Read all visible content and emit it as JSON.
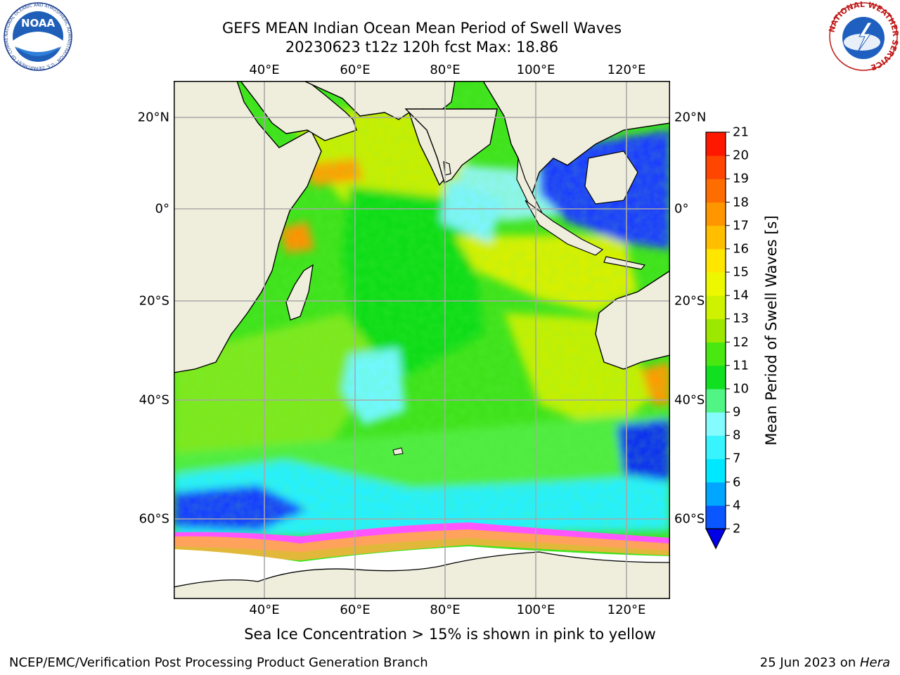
{
  "title": {
    "line1": "GEFS MEAN Indian Ocean Mean Period of Swell Waves",
    "line2": "20230623 t12z 120h fcst   Max: 18.86"
  },
  "axes": {
    "lon_ticks": [
      "40°E",
      "60°E",
      "80°E",
      "100°E",
      "120°E"
    ],
    "lat_ticks": [
      "20°N",
      "0°",
      "20°S",
      "40°S",
      "60°S"
    ]
  },
  "colorbar": {
    "label": "Mean Period of Swell Waves [s]",
    "levels": [
      "2",
      "4",
      "6",
      "7",
      "8",
      "9",
      "10",
      "11",
      "12",
      "13",
      "14",
      "15",
      "16",
      "17",
      "18",
      "19",
      "20",
      "21"
    ],
    "colors": [
      "#0a56ff",
      "#00a6ff",
      "#00e8ff",
      "#38f4ff",
      "#84fbff",
      "#50f585",
      "#10e020",
      "#48e810",
      "#9de800",
      "#cff200",
      "#edf700",
      "#ffe600",
      "#ffbf00",
      "#ff9600",
      "#ff6c00",
      "#ff4600",
      "#ff1800"
    ],
    "extend_color": "#0000e6"
  },
  "note": "Sea Ice Concentration > 15% is shown in pink to yellow",
  "footer": {
    "left": "NCEP/EMC/Verification Post Processing Product Generation Branch",
    "right_prefix": "25 Jun 2023 on ",
    "right_host": "Hera"
  },
  "logos": {
    "noaa": {
      "wordmark": "NOAA",
      "ring_text": "NATIONAL OCEANIC AND ATMOSPHERIC ADMINISTRATION · U.S. DEPARTMENT OF COMMERCE"
    },
    "nws": {
      "ring_text": "NATIONAL WEATHER SERVICE"
    }
  },
  "colors": {
    "land": "#efeedc",
    "grid": "#a8a8a8",
    "sea_ice_pink": "#ff55ff",
    "sea_ice_orange": "#ffa830"
  }
}
